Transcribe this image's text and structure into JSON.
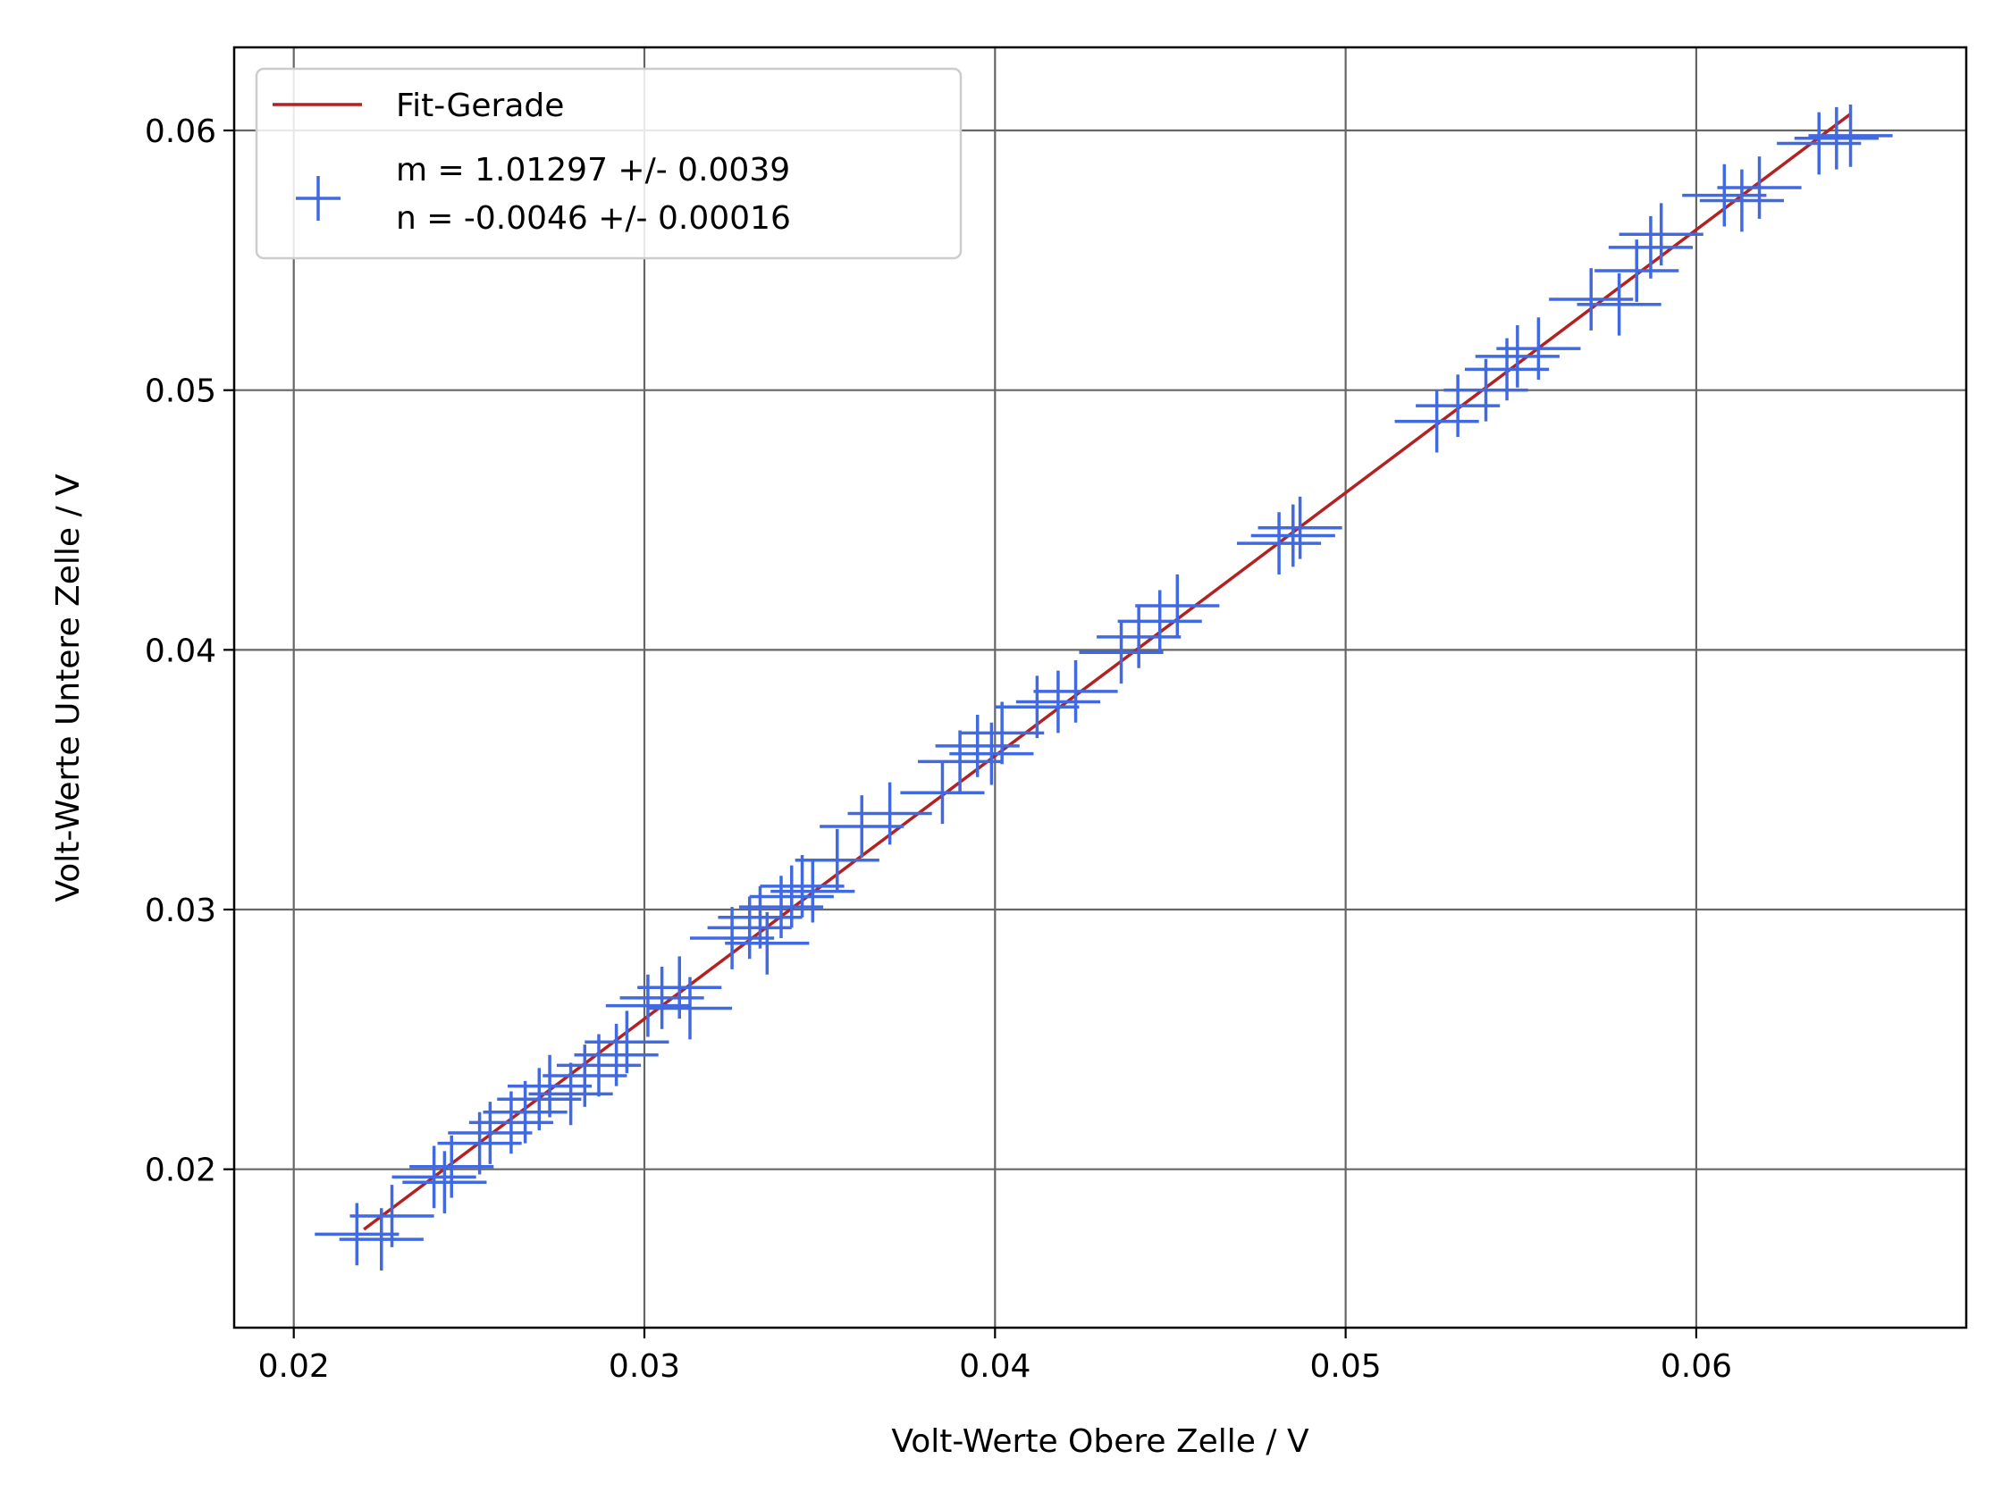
{
  "chart_data": {
    "type": "scatter",
    "xlabel": "Volt-Werte Obere Zelle / V",
    "ylabel": "Volt-Werte Untere Zelle / V",
    "xlim": [
      0.0183,
      0.0677
    ],
    "ylim": [
      0.0139,
      0.0632
    ],
    "xticks": [
      0.02,
      0.03,
      0.04,
      0.05,
      0.06
    ],
    "xtick_labels": [
      "0.02",
      "0.03",
      "0.04",
      "0.05",
      "0.06"
    ],
    "yticks": [
      0.02,
      0.03,
      0.04,
      0.05,
      0.06
    ],
    "ytick_labels": [
      "0.02",
      "0.03",
      "0.04",
      "0.05",
      "0.06"
    ],
    "grid": true,
    "legend_position": "top-left",
    "colors": {
      "fit": "#b22222",
      "data": "#4169e1",
      "grid": "#666666"
    },
    "fit_line": {
      "name": "Fit-Gerade",
      "slope": 1.01297,
      "intercept": -0.0046,
      "x_range": [
        0.022,
        0.0644
      ]
    },
    "series": [
      {
        "name_lines": [
          "m = 1.01297 +/- 0.0039",
          "n = -0.0046 +/- 0.00016"
        ],
        "marker": "errorbar-cross",
        "xerr": 0.0012,
        "yerr": 0.0012,
        "points": [
          [
            0.0218,
            0.0175
          ],
          [
            0.0225,
            0.0173
          ],
          [
            0.0228,
            0.0182
          ],
          [
            0.024,
            0.0197
          ],
          [
            0.0243,
            0.0195
          ],
          [
            0.0245,
            0.0201
          ],
          [
            0.0253,
            0.021
          ],
          [
            0.0256,
            0.0214
          ],
          [
            0.0262,
            0.0218
          ],
          [
            0.0266,
            0.0222
          ],
          [
            0.027,
            0.0227
          ],
          [
            0.0273,
            0.0232
          ],
          [
            0.0279,
            0.0229
          ],
          [
            0.0283,
            0.0236
          ],
          [
            0.0287,
            0.024
          ],
          [
            0.0292,
            0.0244
          ],
          [
            0.0295,
            0.0249
          ],
          [
            0.0301,
            0.0263
          ],
          [
            0.0305,
            0.0266
          ],
          [
            0.031,
            0.027
          ],
          [
            0.0313,
            0.0262
          ],
          [
            0.0325,
            0.0289
          ],
          [
            0.033,
            0.0293
          ],
          [
            0.0333,
            0.0297
          ],
          [
            0.0335,
            0.0287
          ],
          [
            0.0339,
            0.0301
          ],
          [
            0.0342,
            0.0305
          ],
          [
            0.0345,
            0.0309
          ],
          [
            0.0348,
            0.0307
          ],
          [
            0.0355,
            0.0319
          ],
          [
            0.0362,
            0.0332
          ],
          [
            0.037,
            0.0337
          ],
          [
            0.0385,
            0.0345
          ],
          [
            0.039,
            0.0357
          ],
          [
            0.0395,
            0.0363
          ],
          [
            0.0399,
            0.036
          ],
          [
            0.0402,
            0.0368
          ],
          [
            0.0412,
            0.0378
          ],
          [
            0.0418,
            0.038
          ],
          [
            0.0423,
            0.0384
          ],
          [
            0.0436,
            0.0399
          ],
          [
            0.0441,
            0.0405
          ],
          [
            0.0447,
            0.0411
          ],
          [
            0.0452,
            0.0417
          ],
          [
            0.0481,
            0.0441
          ],
          [
            0.0485,
            0.0444
          ],
          [
            0.0487,
            0.0447
          ],
          [
            0.0526,
            0.0488
          ],
          [
            0.0532,
            0.0494
          ],
          [
            0.054,
            0.05
          ],
          [
            0.0546,
            0.0508
          ],
          [
            0.0549,
            0.0513
          ],
          [
            0.0555,
            0.0516
          ],
          [
            0.057,
            0.0535
          ],
          [
            0.0578,
            0.0533
          ],
          [
            0.0583,
            0.0546
          ],
          [
            0.0587,
            0.0555
          ],
          [
            0.059,
            0.056
          ],
          [
            0.0608,
            0.0575
          ],
          [
            0.0613,
            0.0573
          ],
          [
            0.0618,
            0.0578
          ],
          [
            0.0635,
            0.0595
          ],
          [
            0.064,
            0.0597
          ],
          [
            0.0644,
            0.0598
          ]
        ]
      }
    ]
  }
}
